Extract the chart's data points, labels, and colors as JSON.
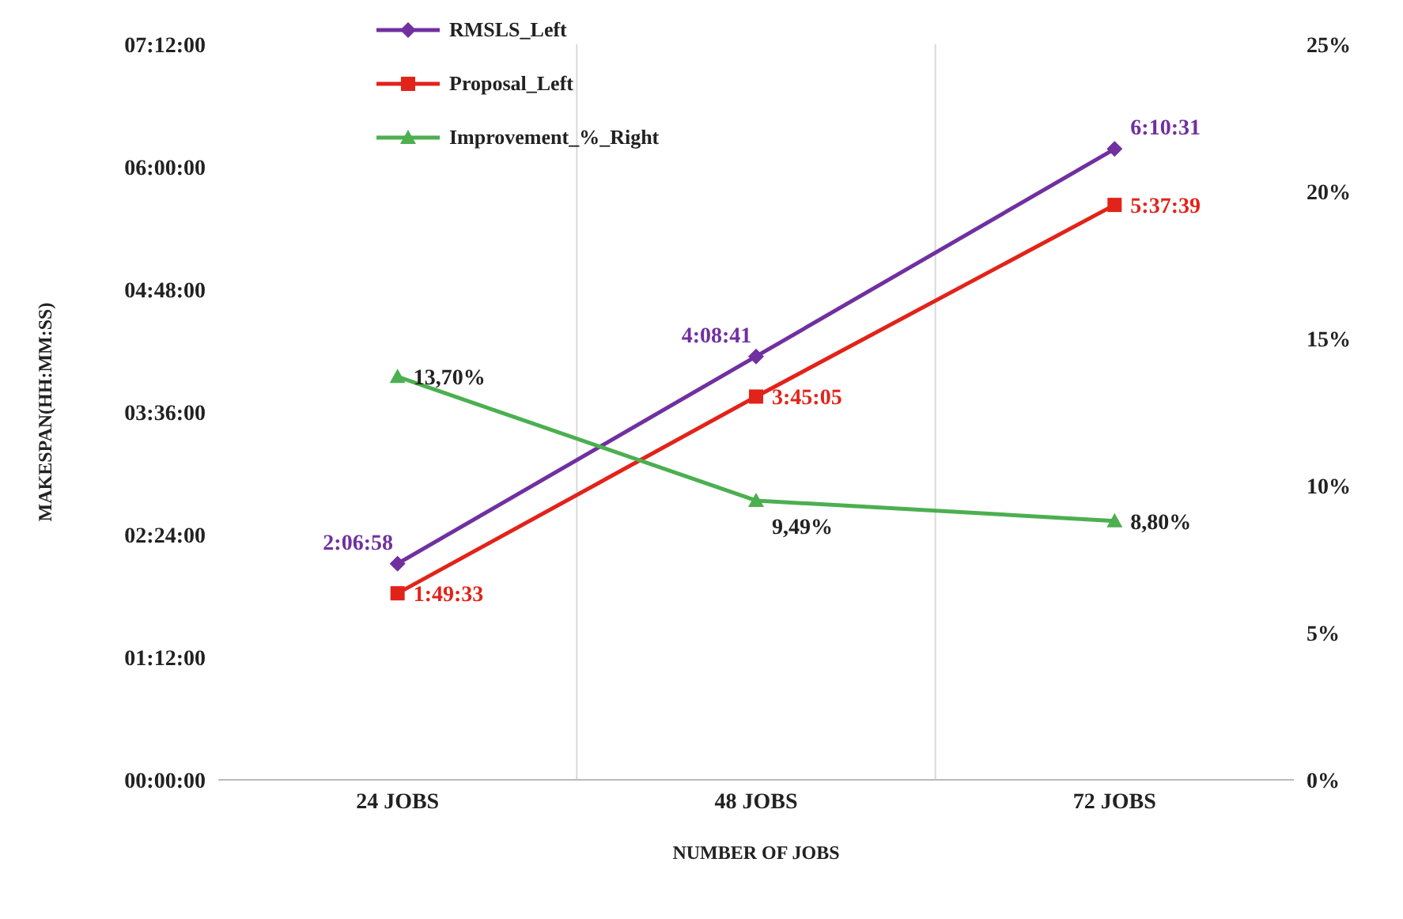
{
  "chart_data": {
    "type": "line",
    "xlabel": "NUMBER OF JOBS",
    "ylabel": "MAKESPAN(HH:MM:SS)",
    "categories": [
      "24 JOBS",
      "48 JOBS",
      "72 JOBS"
    ],
    "ylim": [
      0,
      7.2
    ],
    "yticks": [
      {
        "value": 0,
        "label": "00:00:00"
      },
      {
        "value": 1.2,
        "label": "01:12:00"
      },
      {
        "value": 2.4,
        "label": "02:24:00"
      },
      {
        "value": 3.6,
        "label": "03:36:00"
      },
      {
        "value": 4.8,
        "label": "04:48:00"
      },
      {
        "value": 6,
        "label": "06:00:00"
      },
      {
        "value": 7.2,
        "label": "07:12:00"
      }
    ],
    "y2lim": [
      0,
      25
    ],
    "y2ticks": [
      {
        "value": 0,
        "label": "0%"
      },
      {
        "value": 5,
        "label": "5%"
      },
      {
        "value": 10,
        "label": "10%"
      },
      {
        "value": 15,
        "label": "15%"
      },
      {
        "value": 20,
        "label": "20%"
      },
      {
        "value": 25,
        "label": "25%"
      }
    ],
    "series": [
      {
        "name": "RMSLS_Left",
        "color": "#7030a0",
        "marker": "diamond",
        "values": [
          2.1161,
          4.1447,
          6.1753
        ],
        "value_labels": [
          "2:06:58",
          "4:08:41",
          "6:10:31"
        ]
      },
      {
        "name": "Proposal_Left",
        "color": "#e2231a",
        "marker": "square",
        "values": [
          1.8258,
          3.7514,
          5.6275
        ],
        "value_labels": [
          "1:49:33",
          "3:45:05",
          "5:37:39"
        ]
      },
      {
        "name": "Improvement_%_Right",
        "color": "#4caf50",
        "marker": "triangle",
        "axis": "y2",
        "values": [
          13.7,
          9.49,
          8.8
        ],
        "value_labels": [
          "13,70%",
          "9,49%",
          "8,80%"
        ]
      }
    ],
    "grid": "x",
    "legend": "top"
  }
}
